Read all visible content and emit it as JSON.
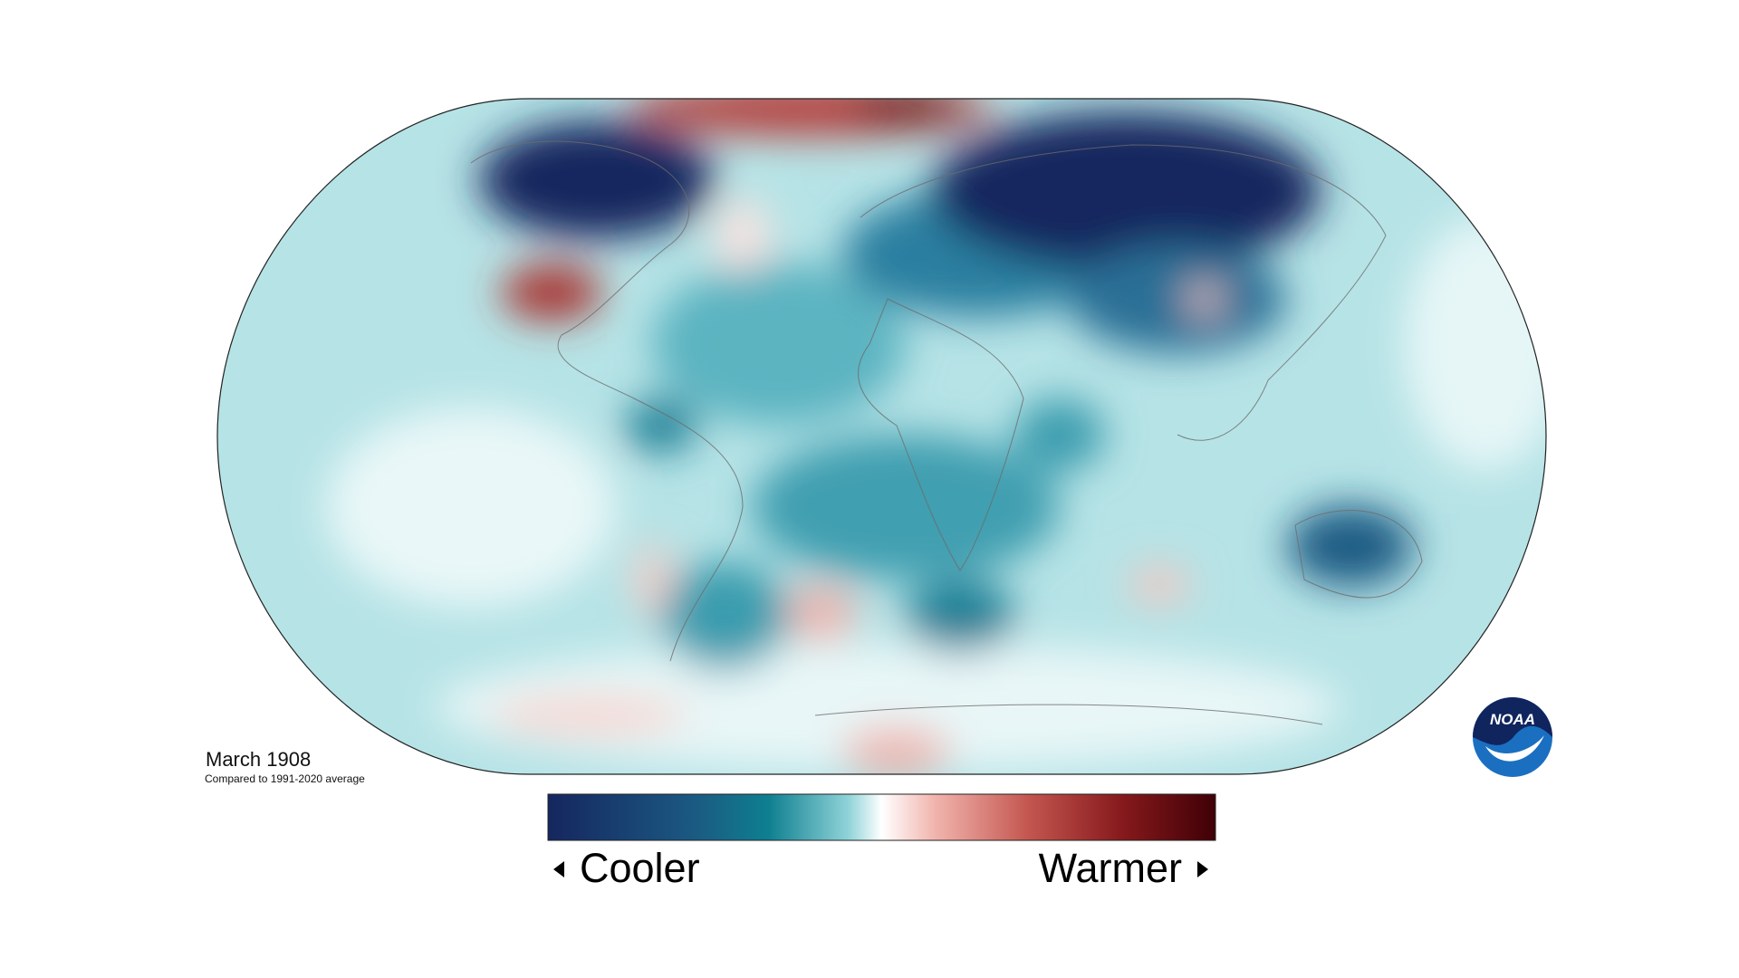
{
  "title": "March 1908",
  "subtitle": "Compared to 1991-2020 average",
  "legend": {
    "low_label": "Cooler",
    "high_label": "Warmer"
  },
  "logo": "NOAA"
}
